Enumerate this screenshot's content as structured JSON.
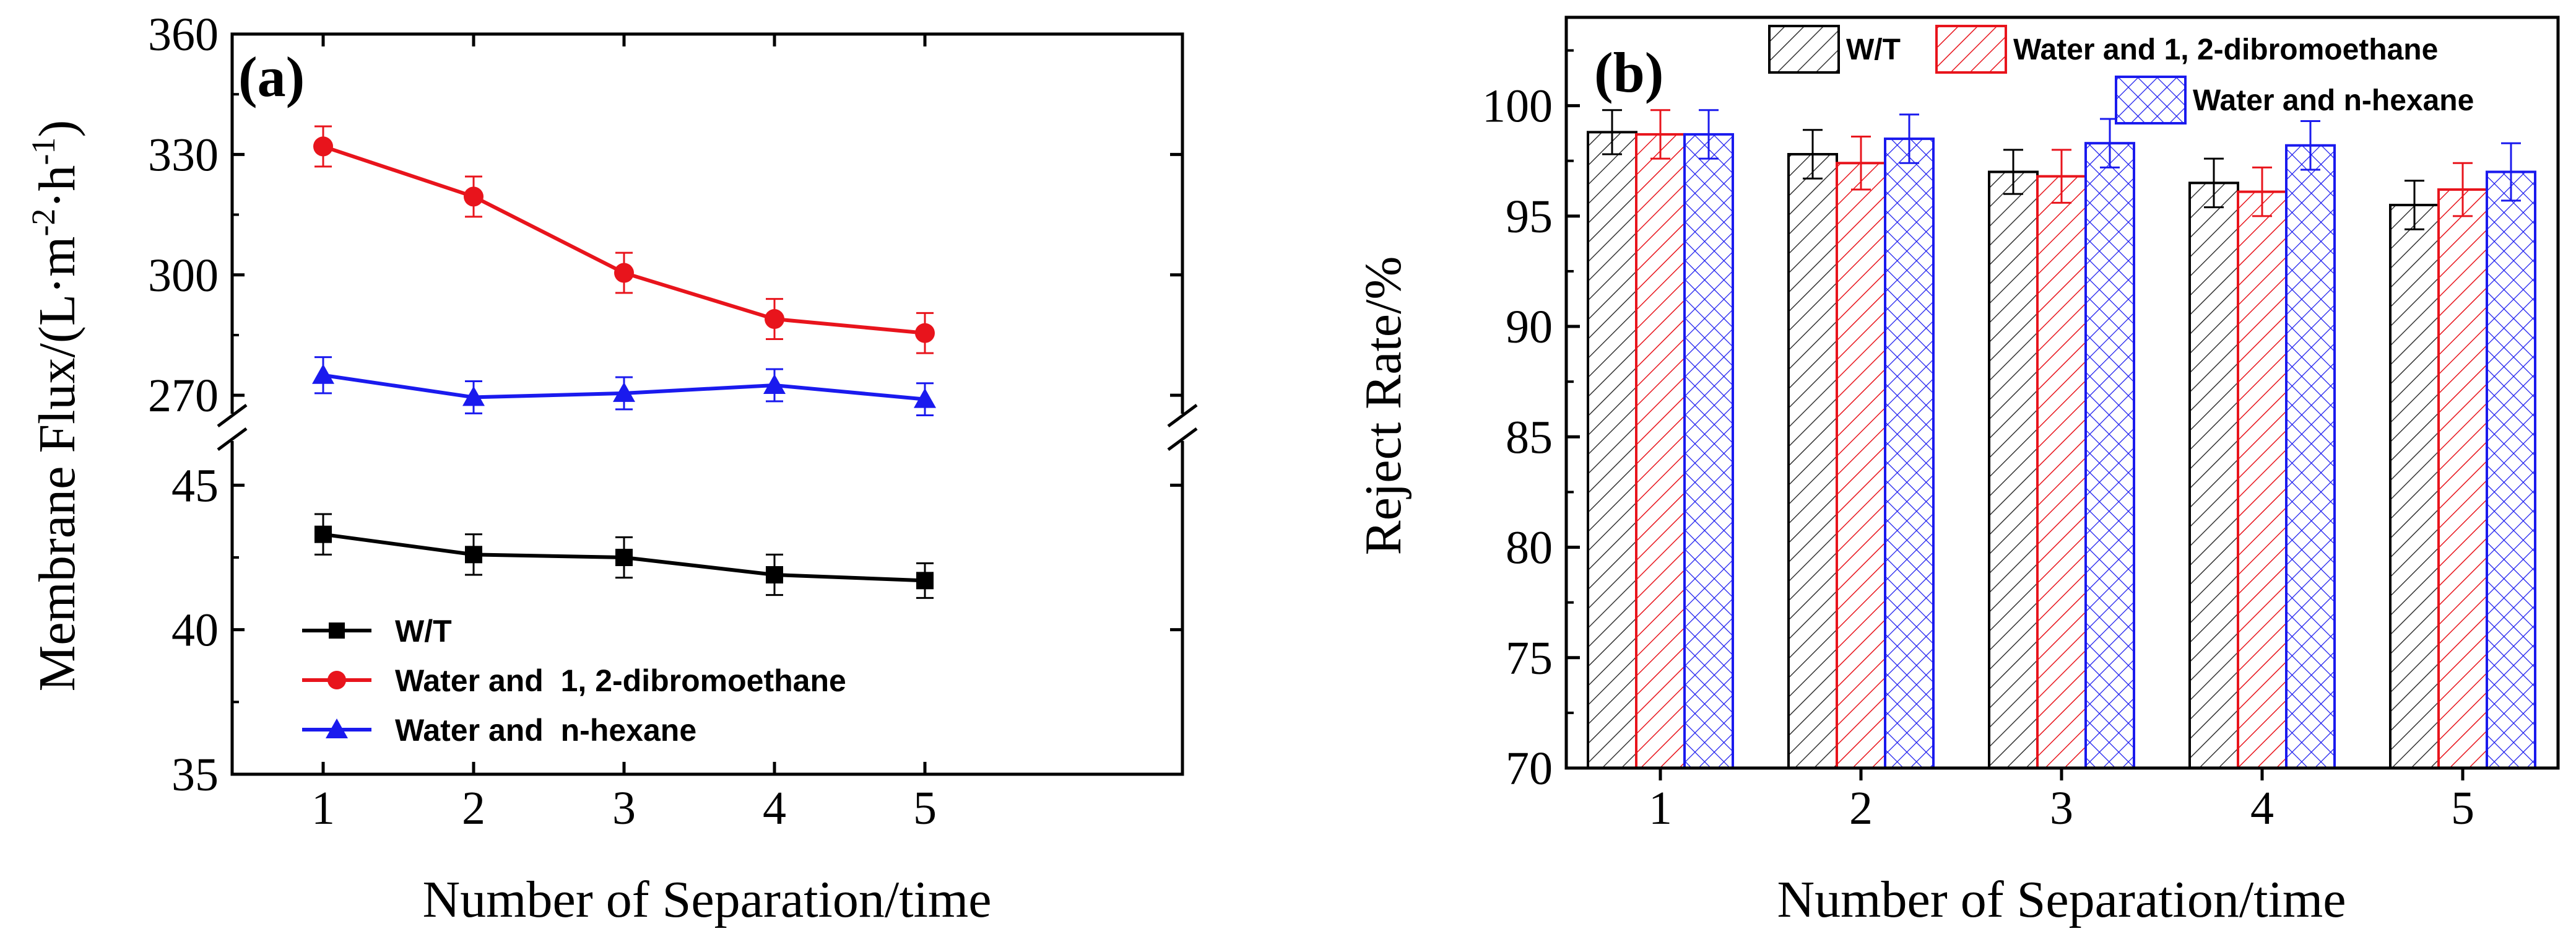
{
  "chart_data": [
    {
      "panel_label": "(a)",
      "type": "line",
      "xlabel": "Number of Separation/time",
      "ylabel_main": "Membrane Flux/(L·m",
      "ylabel_sup1": "-2",
      "ylabel_mid": "·h",
      "ylabel_sup2": "-1",
      "ylabel_end": ")",
      "x": [
        1,
        2,
        3,
        4,
        5
      ],
      "x_tick_labels": [
        "1",
        "2",
        "3",
        "4",
        "5"
      ],
      "y_axis_break": true,
      "ylim_lower": [
        35,
        47
      ],
      "ylim_upper": [
        262,
        360
      ],
      "y_tick_labels_lower": [
        "35",
        "40",
        "45"
      ],
      "y_tick_labels_upper": [
        "270",
        "300",
        "330",
        "360"
      ],
      "legend_position": "lower-left",
      "series": [
        {
          "name": "W/T",
          "color": "#000000",
          "marker": "square",
          "values": [
            43.3,
            42.6,
            42.5,
            41.9,
            41.7
          ],
          "errors": [
            0.7,
            0.7,
            0.7,
            0.7,
            0.6
          ]
        },
        {
          "name": "Water and  1, 2-dibromoethane",
          "color": "#e8141c",
          "marker": "circle",
          "values": [
            332,
            319.5,
            300.5,
            289,
            285.5
          ],
          "errors": [
            5,
            5,
            5,
            5,
            5
          ]
        },
        {
          "name": "Water and  n-hexane",
          "color": "#1a1aee",
          "marker": "triangle",
          "values": [
            275,
            269.5,
            270.5,
            272.5,
            269
          ],
          "errors": [
            4.5,
            4,
            4,
            4,
            4
          ]
        }
      ]
    },
    {
      "panel_label": "(b)",
      "type": "bar",
      "xlabel": "Number of Separation/time",
      "ylabel": "Reject Rate/%",
      "categories": [
        "1",
        "2",
        "3",
        "4",
        "5"
      ],
      "ylim": [
        70,
        104
      ],
      "y_tick_labels": [
        "70",
        "75",
        "80",
        "85",
        "90",
        "95",
        "100"
      ],
      "legend_position": "top",
      "series": [
        {
          "name": "W/T",
          "color": "#000000",
          "pattern": "diagonal-hatch",
          "values": [
            98.8,
            97.8,
            97.0,
            96.5,
            95.5
          ],
          "errors": [
            1.0,
            1.1,
            1.0,
            1.1,
            1.1
          ]
        },
        {
          "name": "Water and 1, 2-dibromoethane",
          "color": "#e8141c",
          "pattern": "diagonal-hatch",
          "values": [
            98.7,
            97.4,
            96.8,
            96.1,
            96.2
          ],
          "errors": [
            1.1,
            1.2,
            1.2,
            1.1,
            1.2
          ]
        },
        {
          "name": "Water and n-hexane",
          "color": "#1a1aee",
          "pattern": "cross-hatch",
          "values": [
            98.7,
            98.5,
            98.3,
            98.2,
            97.0
          ],
          "errors": [
            1.1,
            1.1,
            1.1,
            1.1,
            1.3
          ]
        }
      ]
    }
  ]
}
